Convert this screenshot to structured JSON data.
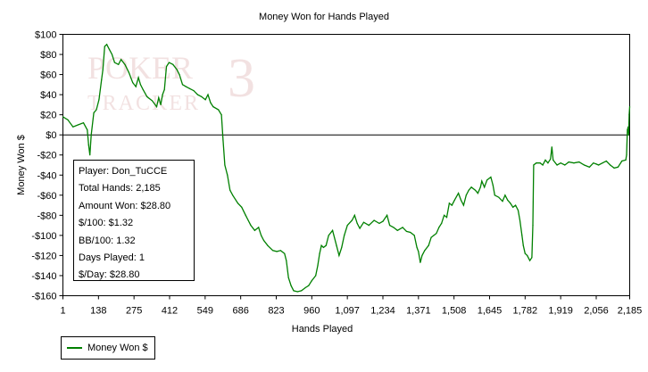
{
  "chart_data": {
    "type": "line",
    "title": "Money Won for Hands Played",
    "xlabel": "Hands Played",
    "ylabel": "Money Won $",
    "xlim": [
      1,
      2185
    ],
    "ylim": [
      -160,
      100
    ],
    "x_ticks": [
      1,
      138,
      275,
      412,
      549,
      686,
      823,
      960,
      1097,
      1234,
      1371,
      1508,
      1645,
      1782,
      1919,
      2056,
      2185
    ],
    "x_tick_labels": [
      "1",
      "138",
      "275",
      "412",
      "549",
      "686",
      "823",
      "960",
      "1,097",
      "1,234",
      "1,371",
      "1,508",
      "1,645",
      "1,782",
      "1,919",
      "2,056",
      "2,185"
    ],
    "y_ticks": [
      100,
      80,
      60,
      40,
      20,
      0,
      -20,
      -40,
      -60,
      -80,
      -100,
      -120,
      -140,
      -160
    ],
    "y_tick_labels": [
      "$100",
      "$80",
      "$60",
      "$40",
      "$20",
      "$0",
      "-$20",
      "-$40",
      "-$60",
      "-$80",
      "-$100",
      "-$120",
      "-$140",
      "-$160"
    ],
    "grid": false,
    "legend_position": "bottom-left",
    "series": [
      {
        "name": "Money Won $",
        "color": "#008000",
        "points": [
          [
            1,
            18
          ],
          [
            20,
            15
          ],
          [
            40,
            8
          ],
          [
            60,
            10
          ],
          [
            80,
            12
          ],
          [
            95,
            5
          ],
          [
            100,
            -10
          ],
          [
            105,
            -20
          ],
          [
            110,
            0
          ],
          [
            120,
            22
          ],
          [
            130,
            25
          ],
          [
            140,
            35
          ],
          [
            150,
            55
          ],
          [
            155,
            65
          ],
          [
            162,
            88
          ],
          [
            170,
            90
          ],
          [
            180,
            85
          ],
          [
            190,
            80
          ],
          [
            200,
            72
          ],
          [
            215,
            70
          ],
          [
            225,
            75
          ],
          [
            240,
            70
          ],
          [
            255,
            62
          ],
          [
            270,
            52
          ],
          [
            282,
            48
          ],
          [
            292,
            57
          ],
          [
            300,
            50
          ],
          [
            310,
            45
          ],
          [
            325,
            38
          ],
          [
            345,
            34
          ],
          [
            362,
            28
          ],
          [
            370,
            37
          ],
          [
            378,
            30
          ],
          [
            385,
            40
          ],
          [
            392,
            45
          ],
          [
            400,
            68
          ],
          [
            410,
            72
          ],
          [
            425,
            70
          ],
          [
            440,
            65
          ],
          [
            450,
            60
          ],
          [
            462,
            50
          ],
          [
            475,
            48
          ],
          [
            490,
            46
          ],
          [
            505,
            44
          ],
          [
            520,
            40
          ],
          [
            535,
            38
          ],
          [
            550,
            35
          ],
          [
            560,
            40
          ],
          [
            570,
            32
          ],
          [
            580,
            28
          ],
          [
            600,
            25
          ],
          [
            612,
            20
          ],
          [
            618,
            -5
          ],
          [
            625,
            -30
          ],
          [
            635,
            -40
          ],
          [
            645,
            -55
          ],
          [
            655,
            -60
          ],
          [
            675,
            -68
          ],
          [
            690,
            -72
          ],
          [
            705,
            -80
          ],
          [
            715,
            -85
          ],
          [
            725,
            -90
          ],
          [
            740,
            -95
          ],
          [
            755,
            -92
          ],
          [
            765,
            -100
          ],
          [
            775,
            -105
          ],
          [
            790,
            -110
          ],
          [
            810,
            -115
          ],
          [
            825,
            -116
          ],
          [
            840,
            -115
          ],
          [
            855,
            -118
          ],
          [
            862,
            -125
          ],
          [
            870,
            -142
          ],
          [
            880,
            -150
          ],
          [
            890,
            -155
          ],
          [
            905,
            -156
          ],
          [
            920,
            -155
          ],
          [
            935,
            -152
          ],
          [
            948,
            -150
          ],
          [
            960,
            -145
          ],
          [
            975,
            -140
          ],
          [
            983,
            -130
          ],
          [
            990,
            -118
          ],
          [
            997,
            -110
          ],
          [
            1005,
            -112
          ],
          [
            1015,
            -110
          ],
          [
            1025,
            -100
          ],
          [
            1040,
            -95
          ],
          [
            1055,
            -110
          ],
          [
            1065,
            -120
          ],
          [
            1075,
            -112
          ],
          [
            1085,
            -100
          ],
          [
            1097,
            -90
          ],
          [
            1115,
            -85
          ],
          [
            1125,
            -80
          ],
          [
            1135,
            -88
          ],
          [
            1145,
            -93
          ],
          [
            1160,
            -87
          ],
          [
            1180,
            -90
          ],
          [
            1200,
            -85
          ],
          [
            1220,
            -88
          ],
          [
            1234,
            -86
          ],
          [
            1250,
            -80
          ],
          [
            1260,
            -90
          ],
          [
            1275,
            -92
          ],
          [
            1290,
            -95
          ],
          [
            1310,
            -92
          ],
          [
            1325,
            -96
          ],
          [
            1340,
            -97
          ],
          [
            1355,
            -100
          ],
          [
            1365,
            -112
          ],
          [
            1371,
            -116
          ],
          [
            1378,
            -127
          ],
          [
            1385,
            -120
          ],
          [
            1395,
            -115
          ],
          [
            1410,
            -110
          ],
          [
            1420,
            -102
          ],
          [
            1430,
            -100
          ],
          [
            1440,
            -98
          ],
          [
            1450,
            -92
          ],
          [
            1460,
            -88
          ],
          [
            1470,
            -80
          ],
          [
            1480,
            -82
          ],
          [
            1490,
            -68
          ],
          [
            1500,
            -70
          ],
          [
            1510,
            -65
          ],
          [
            1525,
            -58
          ],
          [
            1535,
            -65
          ],
          [
            1545,
            -70
          ],
          [
            1555,
            -60
          ],
          [
            1565,
            -55
          ],
          [
            1575,
            -52
          ],
          [
            1590,
            -55
          ],
          [
            1600,
            -58
          ],
          [
            1610,
            -52
          ],
          [
            1615,
            -46
          ],
          [
            1625,
            -52
          ],
          [
            1635,
            -45
          ],
          [
            1650,
            -42
          ],
          [
            1658,
            -50
          ],
          [
            1665,
            -60
          ],
          [
            1680,
            -62
          ],
          [
            1695,
            -66
          ],
          [
            1705,
            -60
          ],
          [
            1715,
            -65
          ],
          [
            1725,
            -68
          ],
          [
            1735,
            -72
          ],
          [
            1745,
            -70
          ],
          [
            1755,
            -75
          ],
          [
            1762,
            -85
          ],
          [
            1770,
            -100
          ],
          [
            1775,
            -110
          ],
          [
            1782,
            -118
          ],
          [
            1790,
            -120
          ],
          [
            1800,
            -125
          ],
          [
            1808,
            -122
          ],
          [
            1812,
            -90
          ],
          [
            1815,
            -30
          ],
          [
            1825,
            -28
          ],
          [
            1840,
            -28
          ],
          [
            1850,
            -30
          ],
          [
            1860,
            -25
          ],
          [
            1870,
            -28
          ],
          [
            1880,
            -24
          ],
          [
            1885,
            -12
          ],
          [
            1890,
            -25
          ],
          [
            1905,
            -30
          ],
          [
            1919,
            -28
          ],
          [
            1935,
            -30
          ],
          [
            1950,
            -27
          ],
          [
            1970,
            -28
          ],
          [
            1990,
            -27
          ],
          [
            2010,
            -30
          ],
          [
            2030,
            -32
          ],
          [
            2045,
            -28
          ],
          [
            2056,
            -29
          ],
          [
            2065,
            -30
          ],
          [
            2080,
            -28
          ],
          [
            2095,
            -26
          ],
          [
            2110,
            -30
          ],
          [
            2125,
            -33
          ],
          [
            2140,
            -32
          ],
          [
            2155,
            -26
          ],
          [
            2170,
            -25
          ],
          [
            2173,
            -20
          ],
          [
            2176,
            5
          ],
          [
            2179,
            8
          ],
          [
            2181,
            0
          ],
          [
            2183,
            20
          ],
          [
            2185,
            28
          ]
        ]
      }
    ]
  },
  "info_box": {
    "player": "Player: Don_TuCCE",
    "total_hands": "Total Hands: 2,185",
    "amount_won": "Amount Won: $28.80",
    "per_100": "$/100: $1.32",
    "bb_per_100": "BB/100: 1.32",
    "days_played": "Days Played: 1",
    "per_day": "$/Day: $28.80"
  },
  "watermark": {
    "line1": "POKER",
    "line2": "TRACKER",
    "version": "3"
  }
}
